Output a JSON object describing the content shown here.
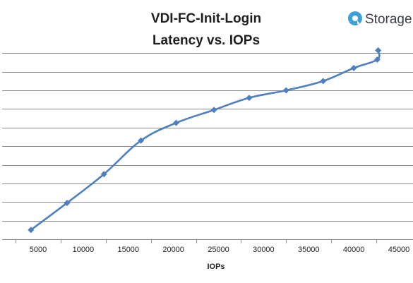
{
  "chart_data": {
    "type": "line",
    "title": [
      "VDI-FC-Init-Login",
      "Latency vs. IOPs"
    ],
    "xlabel": "IOPs",
    "ylabel": "",
    "xlim": [
      2000,
      45000
    ],
    "xticks": [
      5000,
      10000,
      15000,
      20000,
      25000,
      30000,
      35000,
      40000,
      45000
    ],
    "ylim": [
      0,
      10.2
    ],
    "y_gridlines": [
      0,
      1,
      2,
      3,
      4,
      5,
      6,
      7,
      8,
      9,
      10
    ],
    "y_tick_labels_visible": false,
    "grid": "horizontal",
    "legend": "none",
    "series": [
      {
        "color": "#4f7fbf",
        "points": [
          {
            "x": 4200,
            "y": 0.5
          },
          {
            "x": 8200,
            "y": 1.95
          },
          {
            "x": 12300,
            "y": 3.5
          },
          {
            "x": 16400,
            "y": 5.3
          },
          {
            "x": 20300,
            "y": 6.25
          },
          {
            "x": 24500,
            "y": 6.95
          },
          {
            "x": 28400,
            "y": 7.6
          },
          {
            "x": 32500,
            "y": 8.0
          },
          {
            "x": 36600,
            "y": 8.5
          },
          {
            "x": 40000,
            "y": 9.2
          },
          {
            "x": 42600,
            "y": 9.65
          },
          {
            "x": 42700,
            "y": 10.15
          }
        ]
      }
    ]
  },
  "logo": {
    "text": "Storage",
    "icon": "storagereview-logo-icon",
    "color": "#3f9fd8"
  }
}
